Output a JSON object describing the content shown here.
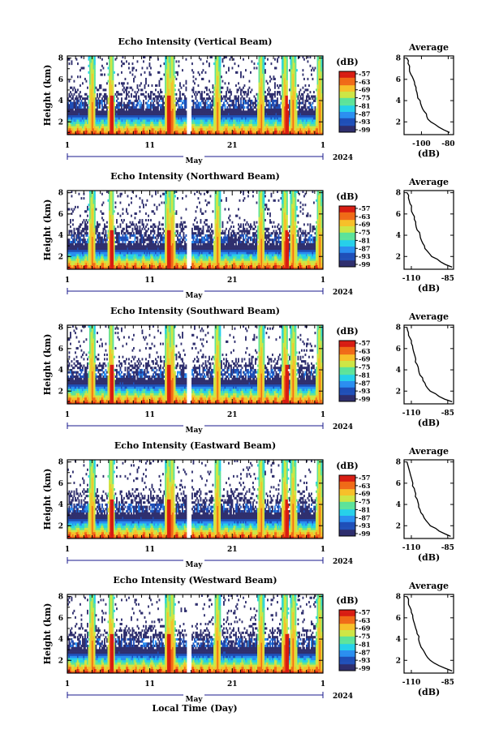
{
  "figure": {
    "month_label": "May",
    "year_label": "2024",
    "xlabel": "Local Time (Day)",
    "ylabel": "Height (km)",
    "colorbar_unit": "(dB)",
    "colorbar_ticks": [
      "-57",
      "-63",
      "-69",
      "-75",
      "-81",
      "-87",
      "-93",
      "-99"
    ],
    "average_title": "Average",
    "average_xlabel": "(dB)",
    "colormap": [
      "#2f2f6e",
      "#1f4fb8",
      "#2a8ef0",
      "#27d0ea",
      "#5de39a",
      "#cde645",
      "#f7c02a",
      "#f06a17",
      "#d81c12"
    ],
    "missing_data_color": "#ffffff"
  },
  "chart_data": [
    {
      "type": "heatmap",
      "title": "Echo Intensity (Vertical Beam)",
      "xlabel": "Local Time (Day)",
      "ylabel": "Height (km)",
      "x_ticks": [
        "1",
        "11",
        "21",
        "1"
      ],
      "y_ticks": [
        "2",
        "4",
        "6",
        "8"
      ],
      "xlim_days": [
        1,
        32
      ],
      "ylim_km": [
        0.8,
        8.2
      ],
      "zlim_db": [
        -99,
        -57
      ],
      "colorbar_ticks": [
        "-57",
        "-63",
        "-69",
        "-75",
        "-81",
        "-87",
        "-93",
        "-99"
      ],
      "profile": {
        "type": "line",
        "title": "Average",
        "xlabel": "(dB)",
        "x_ticks": [
          "-100",
          "-80"
        ],
        "x_tick_values": [
          -100,
          -80
        ],
        "xlim": [
          -113,
          -76
        ],
        "y_ticks": [
          "2",
          "4",
          "6",
          "8"
        ],
        "ylim_km": [
          0.8,
          8.2
        ],
        "height_km": [
          1.0,
          1.5,
          2.0,
          2.5,
          3.0,
          3.5,
          4.0,
          4.5,
          5.0,
          5.5,
          6.0,
          6.5,
          7.0,
          7.5,
          8.0
        ],
        "db": [
          -79,
          -87,
          -93,
          -96,
          -98,
          -100,
          -101,
          -103,
          -104,
          -105,
          -106,
          -108,
          -109,
          -110,
          -111
        ]
      }
    },
    {
      "type": "heatmap",
      "title": "Echo Intensity (Northward Beam)",
      "xlabel": "Local Time (Day)",
      "ylabel": "Height (km)",
      "x_ticks": [
        "1",
        "11",
        "21",
        "1"
      ],
      "y_ticks": [
        "2",
        "4",
        "6",
        "8"
      ],
      "xlim_days": [
        1,
        32
      ],
      "ylim_km": [
        0.8,
        8.2
      ],
      "zlim_db": [
        -99,
        -57
      ],
      "colorbar_ticks": [
        "-57",
        "-63",
        "-69",
        "-75",
        "-81",
        "-87",
        "-93",
        "-99"
      ],
      "profile": {
        "type": "line",
        "title": "Average",
        "xlabel": "(dB)",
        "x_ticks": [
          "-110",
          "-85"
        ],
        "x_tick_values": [
          -110,
          -85
        ],
        "xlim": [
          -115,
          -81
        ],
        "y_ticks": [
          "2",
          "4",
          "6",
          "8"
        ],
        "ylim_km": [
          0.8,
          8.2
        ],
        "height_km": [
          1.0,
          1.5,
          2.0,
          2.5,
          3.0,
          3.5,
          4.0,
          4.5,
          5.0,
          5.5,
          6.0,
          6.5,
          7.0,
          7.5,
          8.0
        ],
        "db": [
          -82,
          -90,
          -96,
          -99,
          -101,
          -103,
          -104,
          -106,
          -107,
          -108,
          -109,
          -110,
          -111,
          -112,
          -113
        ]
      }
    },
    {
      "type": "heatmap",
      "title": "Echo Intensity (Southward Beam)",
      "xlabel": "Local Time (Day)",
      "ylabel": "Height (km)",
      "x_ticks": [
        "1",
        "11",
        "21",
        "1"
      ],
      "y_ticks": [
        "2",
        "4",
        "6",
        "8"
      ],
      "xlim_days": [
        1,
        32
      ],
      "ylim_km": [
        0.8,
        8.2
      ],
      "zlim_db": [
        -99,
        -57
      ],
      "colorbar_ticks": [
        "-57",
        "-63",
        "-69",
        "-75",
        "-81",
        "-87",
        "-93",
        "-99"
      ],
      "profile": {
        "type": "line",
        "title": "Average",
        "xlabel": "(dB)",
        "x_ticks": [
          "-110",
          "-85"
        ],
        "x_tick_values": [
          -110,
          -85
        ],
        "xlim": [
          -115,
          -81
        ],
        "y_ticks": [
          "2",
          "4",
          "6",
          "8"
        ],
        "ylim_km": [
          0.8,
          8.2
        ],
        "height_km": [
          1.0,
          1.5,
          2.0,
          2.5,
          3.0,
          3.5,
          4.0,
          4.5,
          5.0,
          5.5,
          6.0,
          6.5,
          7.0,
          7.5,
          8.0
        ],
        "db": [
          -82,
          -91,
          -97,
          -100,
          -102,
          -104,
          -105,
          -106,
          -107,
          -108,
          -109,
          -110,
          -111,
          -112,
          -113
        ]
      }
    },
    {
      "type": "heatmap",
      "title": "Echo Intensity (Eastward Beam)",
      "xlabel": "Local Time (Day)",
      "ylabel": "Height (km)",
      "x_ticks": [
        "1",
        "11",
        "21",
        "1"
      ],
      "y_ticks": [
        "2",
        "4",
        "6",
        "8"
      ],
      "xlim_days": [
        1,
        32
      ],
      "ylim_km": [
        0.8,
        8.2
      ],
      "zlim_db": [
        -99,
        -57
      ],
      "colorbar_ticks": [
        "-57",
        "-63",
        "-69",
        "-75",
        "-81",
        "-87",
        "-93",
        "-99"
      ],
      "profile": {
        "type": "line",
        "title": "Average",
        "xlabel": "(dB)",
        "x_ticks": [
          "-110",
          "-85"
        ],
        "x_tick_values": [
          -110,
          -85
        ],
        "xlim": [
          -115,
          -81
        ],
        "y_ticks": [
          "2",
          "4",
          "6",
          "8"
        ],
        "ylim_km": [
          0.8,
          8.2
        ],
        "height_km": [
          1.0,
          1.5,
          2.0,
          2.5,
          3.0,
          3.5,
          4.0,
          4.5,
          5.0,
          5.5,
          6.0,
          6.5,
          7.0,
          7.5,
          8.0
        ],
        "db": [
          -83,
          -91,
          -97,
          -100,
          -102,
          -104,
          -105,
          -106,
          -107,
          -108,
          -109,
          -110,
          -111,
          -112,
          -113
        ]
      }
    },
    {
      "type": "heatmap",
      "title": "Echo Intensity (Westward Beam)",
      "xlabel": "Local Time (Day)",
      "ylabel": "Height (km)",
      "x_ticks": [
        "1",
        "11",
        "21",
        "1"
      ],
      "y_ticks": [
        "2",
        "4",
        "6",
        "8"
      ],
      "xlim_days": [
        1,
        32
      ],
      "ylim_km": [
        0.8,
        8.2
      ],
      "zlim_db": [
        -99,
        -57
      ],
      "colorbar_ticks": [
        "-57",
        "-63",
        "-69",
        "-75",
        "-81",
        "-87",
        "-93",
        "-99"
      ],
      "profile": {
        "type": "line",
        "title": "Average",
        "xlabel": "(dB)",
        "x_ticks": [
          "-110",
          "-85"
        ],
        "x_tick_values": [
          -110,
          -85
        ],
        "xlim": [
          -115,
          -81
        ],
        "y_ticks": [
          "2",
          "4",
          "6",
          "8"
        ],
        "ylim_km": [
          0.8,
          8.2
        ],
        "height_km": [
          1.0,
          1.5,
          2.0,
          2.5,
          3.0,
          3.5,
          4.0,
          4.5,
          5.0,
          5.5,
          6.0,
          6.5,
          7.0,
          7.5,
          8.0
        ],
        "db": [
          -82,
          -91,
          -97,
          -100,
          -102,
          -104,
          -105,
          -106,
          -107,
          -108,
          -109,
          -110,
          -111,
          -112,
          -113
        ]
      }
    }
  ]
}
